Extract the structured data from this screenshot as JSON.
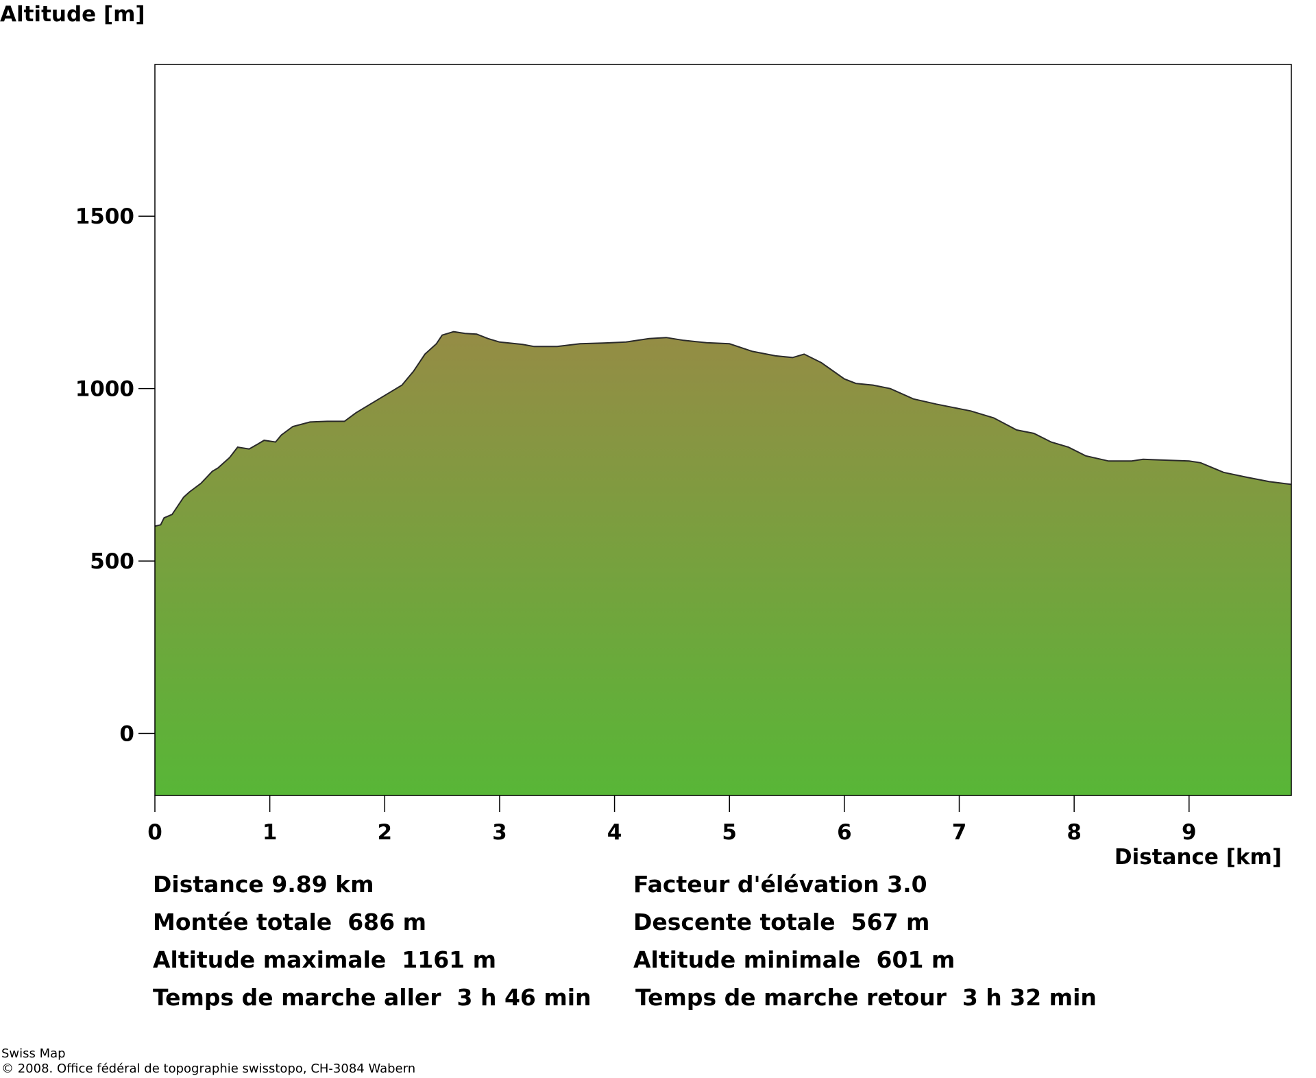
{
  "chart_data": {
    "type": "area",
    "ylabel": "Altitude [m]",
    "xlabel": "Distance [km]",
    "xlim": [
      0,
      9.89
    ],
    "ylim": [
      -180,
      1940
    ],
    "x_ticks": [
      "0",
      "1",
      "2",
      "3",
      "4",
      "5",
      "6",
      "7",
      "8",
      "9"
    ],
    "y_ticks": [
      "0",
      "500",
      "1000",
      "1500"
    ],
    "grid": false,
    "fill_gradient": {
      "top": "#958c45",
      "bottom": "#58b637"
    },
    "x": [
      0,
      0.05,
      0.08,
      0.15,
      0.25,
      0.3,
      0.4,
      0.5,
      0.55,
      0.65,
      0.72,
      0.82,
      0.9,
      0.95,
      1.05,
      1.1,
      1.2,
      1.35,
      1.5,
      1.65,
      1.75,
      1.9,
      2.05,
      2.15,
      2.25,
      2.35,
      2.45,
      2.5,
      2.6,
      2.7,
      2.8,
      2.9,
      3.0,
      3.2,
      3.3,
      3.5,
      3.7,
      3.9,
      4.1,
      4.3,
      4.45,
      4.6,
      4.8,
      5.0,
      5.2,
      5.4,
      5.55,
      5.65,
      5.8,
      6.0,
      6.1,
      6.25,
      6.4,
      6.6,
      6.8,
      6.95,
      7.1,
      7.3,
      7.5,
      7.65,
      7.8,
      7.95,
      8.1,
      8.3,
      8.5,
      8.6,
      8.75,
      9.0,
      9.1,
      9.3,
      9.5,
      9.7,
      9.89
    ],
    "values": [
      601,
      605,
      625,
      635,
      685,
      700,
      725,
      760,
      770,
      800,
      830,
      825,
      840,
      850,
      845,
      865,
      890,
      903,
      905,
      905,
      930,
      960,
      990,
      1010,
      1050,
      1100,
      1130,
      1155,
      1165,
      1160,
      1158,
      1145,
      1135,
      1128,
      1122,
      1122,
      1130,
      1132,
      1135,
      1145,
      1148,
      1140,
      1133,
      1130,
      1108,
      1095,
      1090,
      1100,
      1075,
      1028,
      1015,
      1010,
      1000,
      970,
      955,
      945,
      935,
      915,
      880,
      870,
      845,
      830,
      805,
      790,
      790,
      795,
      793,
      790,
      785,
      757,
      743,
      730,
      722
    ],
    "stats_left": [
      "Distance 9.89 km",
      "Montée totale  686 m",
      "Altitude maximale  1161 m",
      "Temps de marche aller  3 h 46 min"
    ],
    "stats_right": [
      "Facteur d'élévation 3.0",
      "Descente totale  567 m",
      "Altitude minimale  601 m",
      "Temps de marche retour  3 h 32 min"
    ]
  },
  "footer": {
    "line1": "Swiss Map",
    "line2": "© 2008. Office fédéral de topographie swisstopo, CH-3084 Wabern"
  }
}
